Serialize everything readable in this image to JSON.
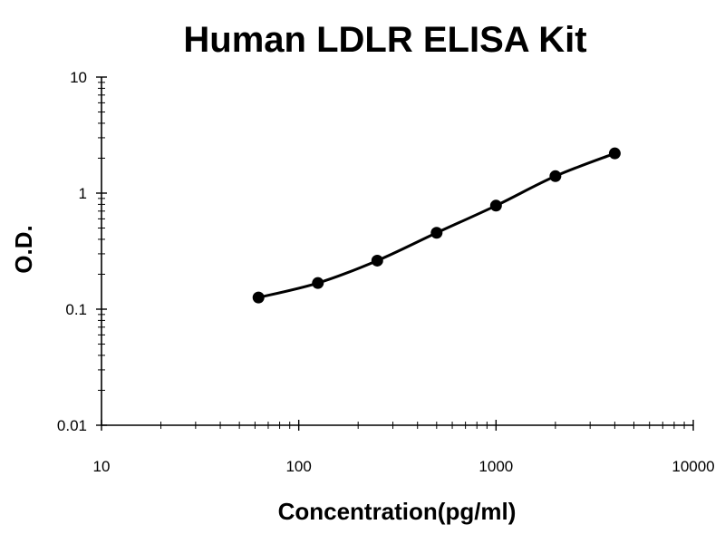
{
  "chart_data": {
    "type": "line",
    "title": "Human LDLR ELISA Kit",
    "xlabel": "Concentration(pg/ml)",
    "ylabel": "O.D.",
    "x_scale": "log",
    "y_scale": "log",
    "xlim": [
      10,
      10000
    ],
    "ylim": [
      0.01,
      10
    ],
    "x_ticks": [
      10,
      100,
      1000,
      10000
    ],
    "x_tick_labels": [
      "10",
      "100",
      "1000",
      "10000"
    ],
    "y_ticks": [
      0.01,
      0.1,
      1,
      10
    ],
    "y_tick_labels": [
      "0.01",
      "0.1",
      "1",
      "10"
    ],
    "grid": false,
    "legend": "none",
    "line_color": "#000000",
    "series": [
      {
        "x": [
          62.5,
          125,
          250,
          500,
          1000,
          2000,
          4000
        ],
        "y": [
          0.126,
          0.168,
          0.262,
          0.455,
          0.78,
          1.4,
          2.2
        ]
      }
    ]
  }
}
